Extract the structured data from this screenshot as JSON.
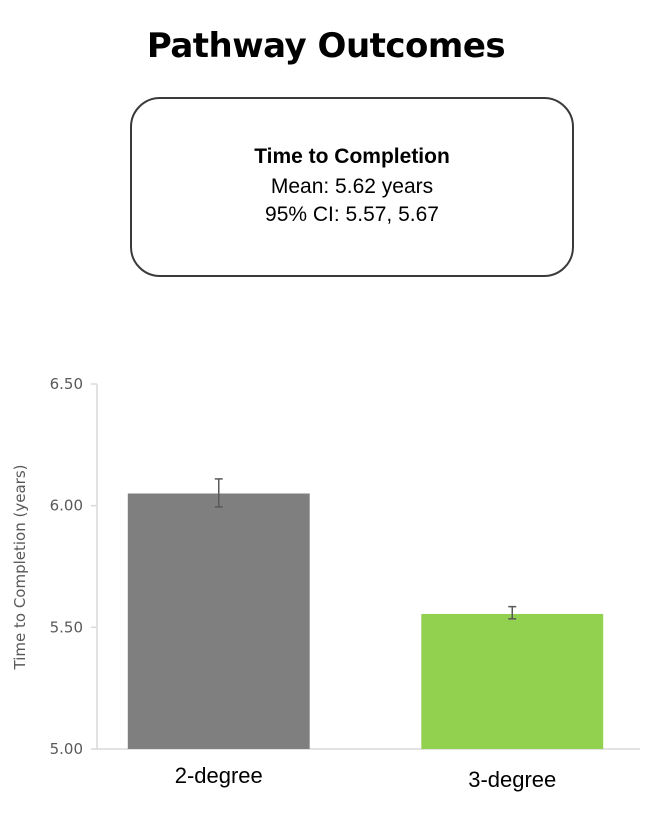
{
  "page": {
    "title": "Pathway Outcomes"
  },
  "summary": {
    "heading": "Time to Completion",
    "mean_text": "Mean: 5.62 years",
    "ci_text": "95% CI: 5.57, 5.67"
  },
  "chart_data": {
    "type": "bar",
    "categories": [
      "2-degree",
      "3-degree"
    ],
    "values": [
      6.05,
      5.555
    ],
    "error_low": [
      5.995,
      5.535
    ],
    "error_high": [
      6.11,
      5.585
    ],
    "bar_colors": [
      "#7f7f7f",
      "#92d050"
    ],
    "ylabel": "Time to Completion (years)",
    "ylim": [
      5.0,
      6.5
    ],
    "yticks": [
      "5.00",
      "5.50",
      "6.00",
      "6.50"
    ],
    "grid": false
  }
}
